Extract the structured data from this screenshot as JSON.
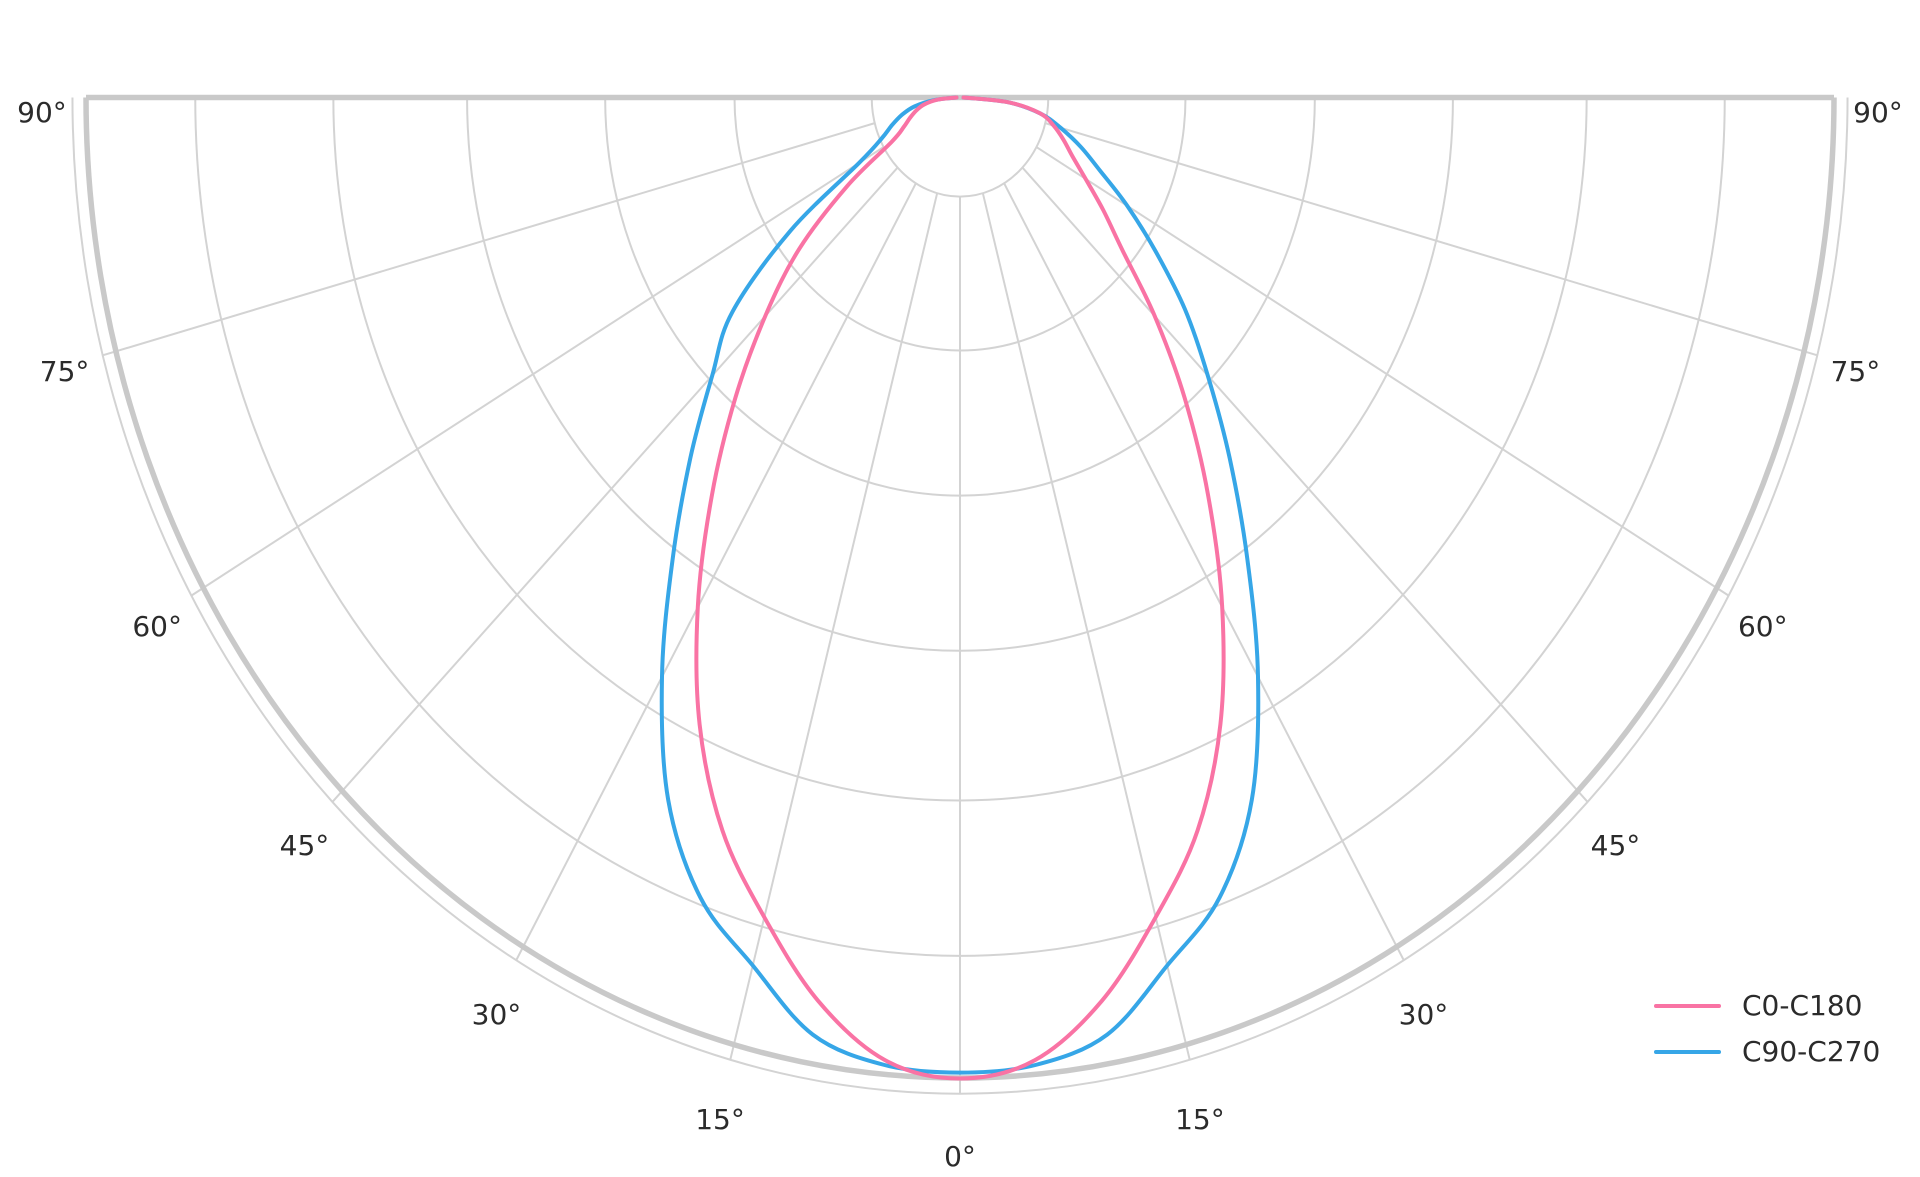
{
  "chart_data": {
    "type": "polar_photometric_curve",
    "title": "",
    "description": "Luminous intensity distribution curve on a semicircular polar grid; 0° at nadir (bottom center), 90° at the horizontal (top edges). No radial value labels are shown.",
    "angle_unit": "degrees",
    "theta_range_deg": [
      -90,
      90
    ],
    "theta_zero_location": "bottom",
    "grid": {
      "grid_on": true,
      "spoke_step_deg": 15,
      "ring_fractions": [
        0.258,
        0.406,
        0.564,
        0.717,
        0.875
      ],
      "inner_hole_fraction": 0.101,
      "outer_rim_fraction": 1.0,
      "outer_thin_ring_fraction": 1.0155,
      "grid_color": "#d3d3d3",
      "rim_color": "#c9c9c9"
    },
    "angle_ticks": [
      {
        "side": "left",
        "angle": 90,
        "label": "90°"
      },
      {
        "side": "left",
        "angle": 75,
        "label": "75°"
      },
      {
        "side": "left",
        "angle": 60,
        "label": "60°"
      },
      {
        "side": "left",
        "angle": 45,
        "label": "45°"
      },
      {
        "side": "left",
        "angle": 30,
        "label": "30°"
      },
      {
        "side": "left",
        "angle": 15,
        "label": "15°"
      },
      {
        "side": "center",
        "angle": 0,
        "label": "0°"
      },
      {
        "side": "right",
        "angle": 15,
        "label": "15°"
      },
      {
        "side": "right",
        "angle": 30,
        "label": "30°"
      },
      {
        "side": "right",
        "angle": 45,
        "label": "45°"
      },
      {
        "side": "right",
        "angle": 60,
        "label": "60°"
      },
      {
        "side": "right",
        "angle": 75,
        "label": "75°"
      },
      {
        "side": "right",
        "angle": 90,
        "label": "90°"
      }
    ],
    "radial_axis": {
      "normalized": true,
      "min": 0,
      "max": 1.0,
      "tick_labels_shown": false
    },
    "angles_deg": [
      0,
      5,
      10,
      15,
      20,
      25,
      30,
      35,
      40,
      45,
      50,
      55,
      60,
      65,
      70,
      75,
      80,
      85,
      90
    ],
    "series": [
      {
        "name": "C0-C180",
        "color": "#f973a4",
        "r_right": [
          1.0,
          0.985,
          0.935,
          0.865,
          0.795,
          0.705,
          0.6,
          0.495,
          0.4,
          0.315,
          0.243,
          0.2,
          0.166,
          0.142,
          0.126,
          0.111,
          0.093,
          0.055,
          0.004
        ],
        "r_left": [
          1.0,
          0.985,
          0.935,
          0.865,
          0.795,
          0.705,
          0.6,
          0.495,
          0.4,
          0.315,
          0.24,
          0.158,
          0.09,
          0.071,
          0.061,
          0.052,
          0.042,
          0.026,
          0.004
        ]
      },
      {
        "name": "C90-C270",
        "color": "#36a6e7",
        "r_right": [
          0.994,
          0.99,
          0.97,
          0.916,
          0.868,
          0.79,
          0.682,
          0.573,
          0.48,
          0.401,
          0.336,
          0.273,
          0.221,
          0.177,
          0.147,
          0.119,
          0.093,
          0.055,
          0.004
        ],
        "r_left": [
          0.994,
          0.99,
          0.97,
          0.916,
          0.868,
          0.79,
          0.682,
          0.573,
          0.48,
          0.401,
          0.34,
          0.237,
          0.133,
          0.099,
          0.083,
          0.069,
          0.053,
          0.029,
          0.004
        ]
      }
    ],
    "legend_position": "bottom-right"
  },
  "colors": {
    "background": "#ffffff",
    "grid_thin": "#d3d3d3",
    "grid_thick": "#c9c9c9",
    "text": "#2b2b2b",
    "series_c0_c180": "#f973a4",
    "series_c90_c270": "#36a6e7"
  }
}
